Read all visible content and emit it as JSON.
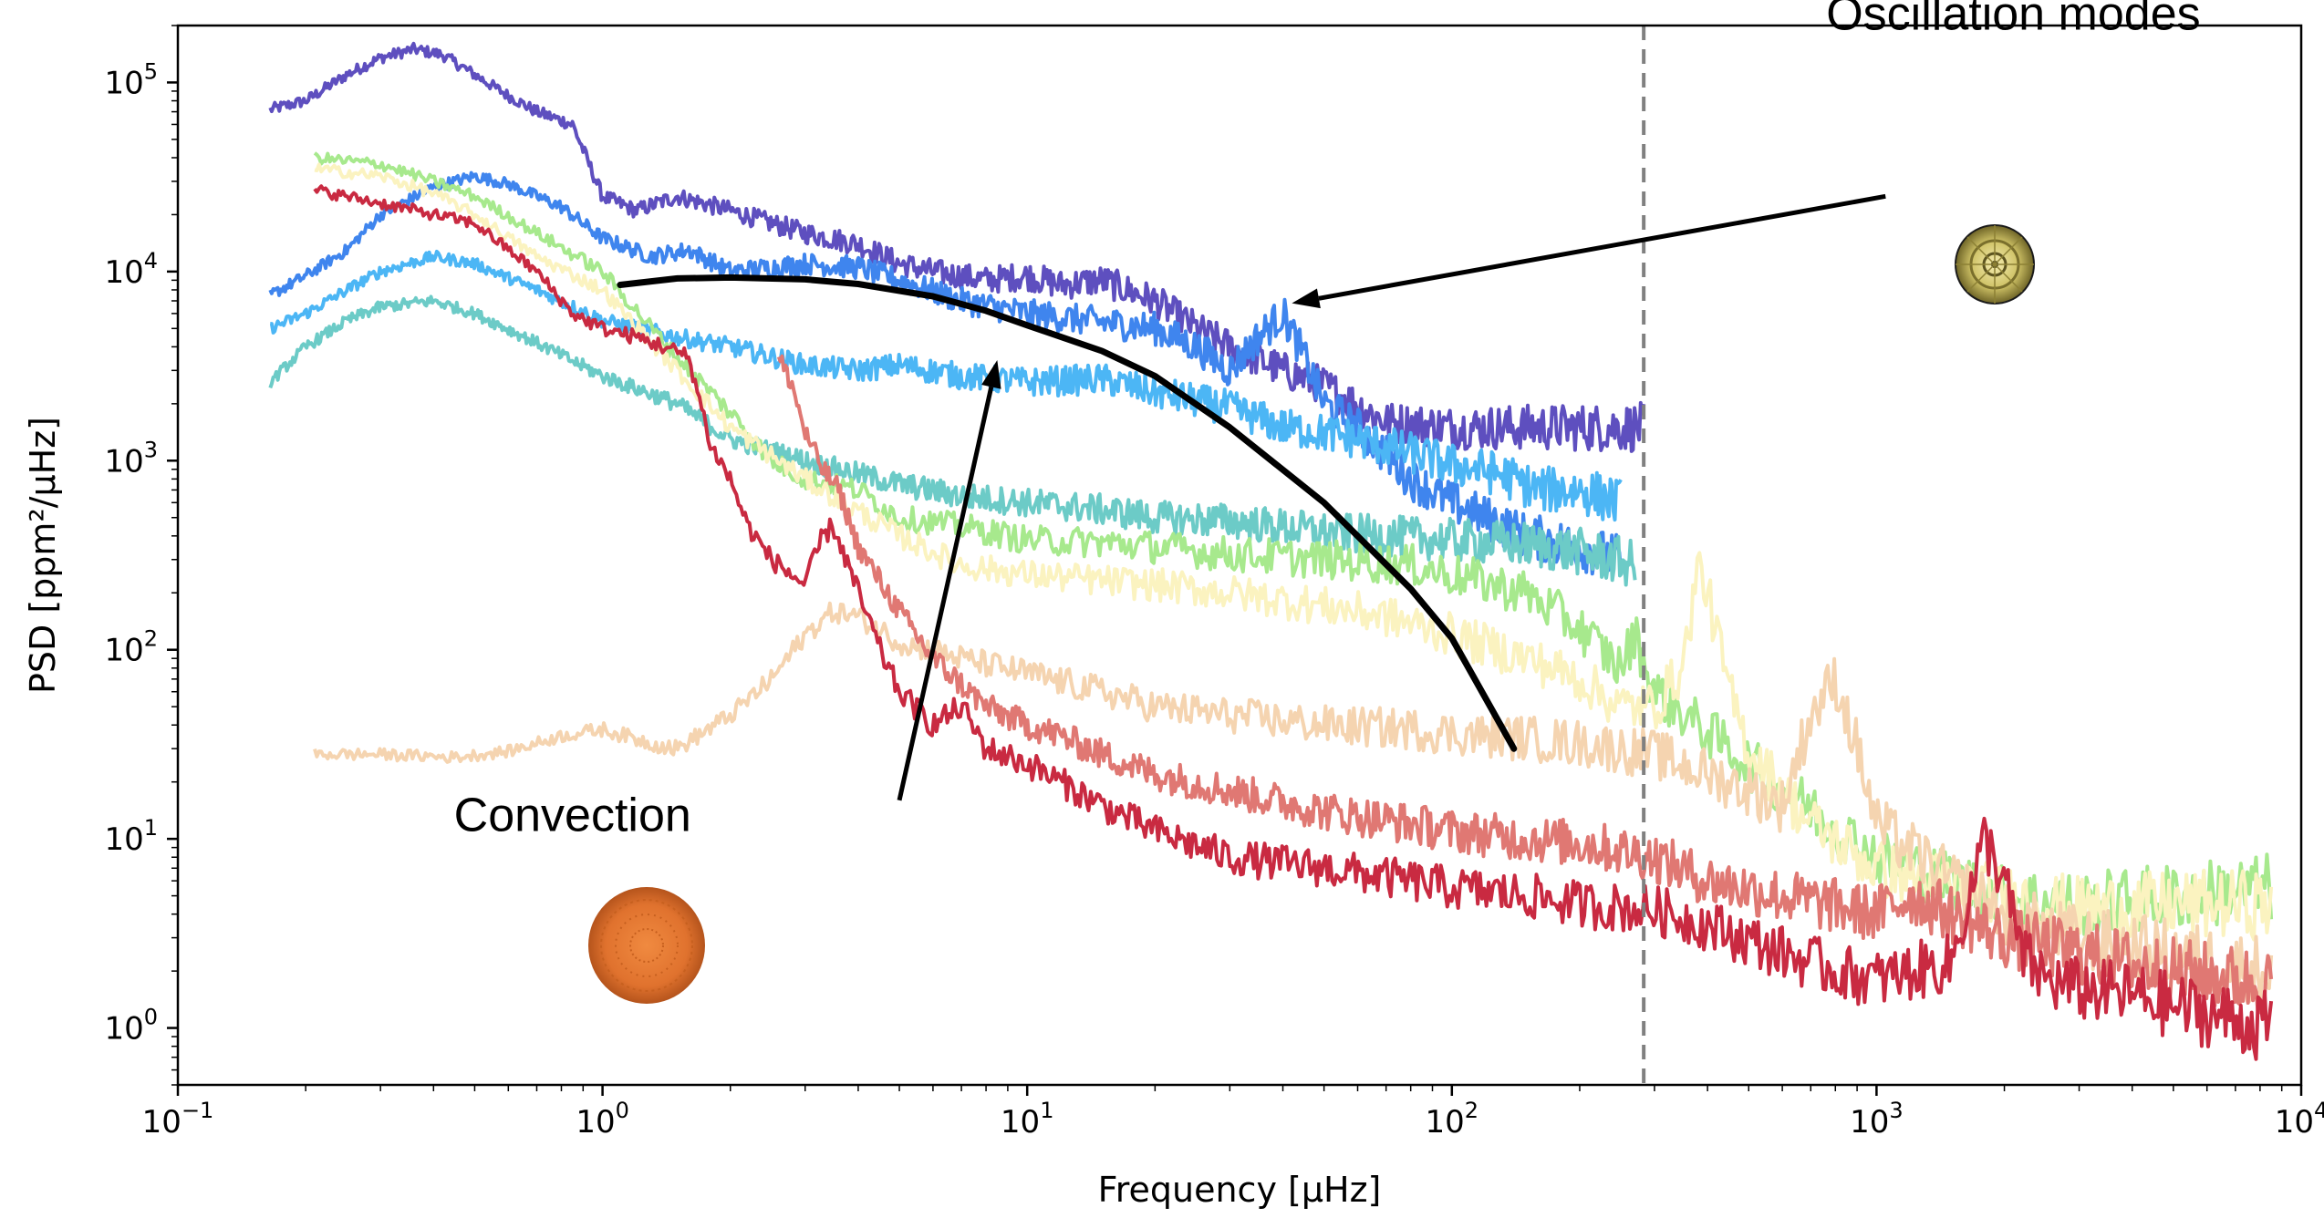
{
  "chart_data": {
    "type": "line",
    "xlabel": "Frequency [μHz]",
    "ylabel": "PSD [ppm²/μHz]",
    "xscale": "log",
    "yscale": "log",
    "xlim": [
      0.1,
      10000
    ],
    "ylim": [
      0.5,
      200000
    ],
    "grid": false,
    "xticks": [
      {
        "value": 0.1,
        "base": "10",
        "exp": "−1"
      },
      {
        "value": 1,
        "base": "10",
        "exp": "0"
      },
      {
        "value": 10,
        "base": "10",
        "exp": "1"
      },
      {
        "value": 100,
        "base": "10",
        "exp": "2"
      },
      {
        "value": 1000,
        "base": "10",
        "exp": "3"
      },
      {
        "value": 10000,
        "base": "10",
        "exp": "4"
      }
    ],
    "yticks": [
      {
        "value": 1,
        "base": "10",
        "exp": "0"
      },
      {
        "value": 10,
        "base": "10",
        "exp": "1"
      },
      {
        "value": 100,
        "base": "10",
        "exp": "2"
      },
      {
        "value": 1000,
        "base": "10",
        "exp": "3"
      },
      {
        "value": 10000,
        "base": "10",
        "exp": "4"
      },
      {
        "value": 100000,
        "base": "10",
        "exp": "5"
      }
    ],
    "vline": {
      "x": 283,
      "style": "dashed",
      "color": "#808080"
    },
    "series": [
      {
        "color": "#5e4fbf",
        "x": [
          0.165,
          0.2,
          0.25,
          0.3,
          0.36,
          0.42,
          0.5,
          0.6,
          0.7,
          0.85,
          1.0,
          1.2,
          1.5,
          2.0,
          2.5,
          3.0,
          4.0,
          5.0,
          6.0,
          8.0,
          10,
          12,
          15,
          20,
          25,
          30,
          40,
          50,
          70,
          100,
          150,
          200,
          283
        ],
        "y": [
          72000,
          80000,
          110000,
          135000,
          150000,
          140000,
          110000,
          85000,
          70000,
          60000,
          25000,
          21000,
          25000,
          21000,
          18000,
          16000,
          14000,
          11000,
          10000,
          9000,
          9500,
          8500,
          9000,
          7000,
          5000,
          4000,
          3000,
          2500,
          1600,
          1500,
          1500,
          1500,
          1500
        ]
      },
      {
        "color": "#3f85ee",
        "x": [
          0.165,
          0.2,
          0.25,
          0.3,
          0.4,
          0.5,
          0.6,
          0.8,
          1.0,
          1.3,
          1.6,
          2.0,
          3.0,
          4.0,
          5.0,
          7.0,
          10,
          14,
          20,
          25,
          30,
          35,
          40,
          45,
          50,
          60,
          80,
          100,
          150,
          200,
          250
        ],
        "y": [
          7500,
          9500,
          13000,
          20000,
          28000,
          32000,
          29000,
          22000,
          15000,
          12000,
          13000,
          10000,
          11000,
          10500,
          9000,
          7000,
          6000,
          5500,
          5000,
          4000,
          3000,
          4500,
          6000,
          3500,
          2000,
          1500,
          800,
          600,
          400,
          350,
          300
        ]
      },
      {
        "color": "#4cb6f5",
        "x": [
          0.165,
          0.2,
          0.25,
          0.3,
          0.4,
          0.5,
          0.7,
          1.0,
          1.5,
          2.0,
          3.0,
          4.0,
          5.0,
          7.0,
          10,
          15,
          20,
          30,
          40,
          50,
          60,
          80,
          100,
          130,
          160,
          200,
          250
        ],
        "y": [
          5000,
          6000,
          8000,
          10000,
          12000,
          11000,
          8000,
          5500,
          4500,
          4000,
          3200,
          3000,
          3200,
          2800,
          2600,
          2700,
          2300,
          1900,
          1500,
          1400,
          1300,
          1100,
          950,
          850,
          700,
          700,
          600
        ]
      },
      {
        "color": "#6ccbc7",
        "x": [
          0.165,
          0.2,
          0.25,
          0.3,
          0.4,
          0.5,
          0.7,
          1.0,
          1.5,
          2.0,
          3.0,
          5.0,
          7.0,
          10,
          15,
          20,
          30,
          50,
          70,
          100,
          150,
          200,
          240,
          270
        ],
        "y": [
          2600,
          4000,
          5500,
          6500,
          7000,
          6000,
          4200,
          2800,
          2000,
          1300,
          1000,
          750,
          650,
          600,
          550,
          500,
          480,
          420,
          400,
          380,
          360,
          330,
          300,
          280
        ]
      },
      {
        "color": "#a7e98d",
        "x": [
          0.21,
          0.3,
          0.4,
          0.5,
          0.7,
          1.0,
          1.5,
          2.0,
          2.5,
          3.0,
          4.0,
          5.0,
          7.0,
          10,
          15,
          20,
          30,
          50,
          80,
          100,
          150,
          200,
          250,
          270,
          300,
          500,
          1000,
          2000,
          3000,
          5000,
          8500
        ],
        "y": [
          40000,
          37000,
          30000,
          25000,
          16000,
          10000,
          3500,
          1800,
          1000,
          800,
          700,
          500,
          450,
          380,
          370,
          350,
          320,
          300,
          280,
          250,
          200,
          130,
          80,
          120,
          60,
          25,
          8,
          5,
          4.5,
          5,
          5.5
        ]
      },
      {
        "color": "#fbf3c0",
        "x": [
          0.21,
          0.3,
          0.4,
          0.5,
          0.7,
          1.0,
          1.5,
          2.0,
          3.0,
          5.0,
          7.0,
          10,
          20,
          30,
          50,
          70,
          100,
          150,
          200,
          250,
          300,
          350,
          380,
          400,
          450,
          500,
          700,
          1000,
          2000,
          3000,
          5000,
          8500
        ],
        "y": [
          35000,
          32000,
          26000,
          20000,
          12000,
          8000,
          3000,
          1500,
          800,
          400,
          280,
          250,
          220,
          200,
          170,
          150,
          120,
          90,
          70,
          50,
          50,
          80,
          280,
          200,
          60,
          30,
          12,
          7,
          5,
          4.3,
          4.5,
          4.5
        ]
      },
      {
        "color": "#f5d4b0",
        "x": [
          0.21,
          0.3,
          0.45,
          0.6,
          0.8,
          1.0,
          1.3,
          1.5,
          2.0,
          2.5,
          3.0,
          3.5,
          4.0,
          5.0,
          7.0,
          10,
          15,
          20,
          30,
          50,
          80,
          100,
          150,
          200,
          300,
          400,
          500,
          600,
          700,
          800,
          900,
          1000,
          1500,
          2000,
          3000,
          5000,
          8500
        ],
        "y": [
          28,
          28,
          27,
          29,
          35,
          38,
          32,
          30,
          45,
          70,
          120,
          160,
          150,
          110,
          90,
          75,
          60,
          50,
          45,
          40,
          38,
          36,
          34,
          32,
          28,
          22,
          18,
          15,
          45,
          70,
          30,
          12,
          6,
          4,
          3,
          2.5,
          2
        ]
      },
      {
        "color": "#e07873",
        "x": [
          2.6,
          2.8,
          3.0,
          3.3,
          3.6,
          4.0,
          5.0,
          6.0,
          8.0,
          10,
          12,
          15,
          20,
          30,
          50,
          80,
          100,
          150,
          200,
          300,
          400,
          600,
          1000,
          1200,
          1500,
          2000,
          3000,
          5000,
          8500
        ],
        "y": [
          3500,
          2500,
          1400,
          900,
          700,
          350,
          160,
          90,
          50,
          40,
          35,
          28,
          22,
          18,
          14,
          12,
          11,
          10,
          9.5,
          8,
          6,
          5,
          4,
          5,
          4,
          3,
          2.5,
          2,
          1.7
        ]
      },
      {
        "color": "#c92a41",
        "x": [
          0.21,
          0.3,
          0.5,
          0.7,
          0.85,
          1.0,
          1.2,
          1.4,
          1.6,
          1.8,
          2.0,
          2.2,
          2.5,
          3.0,
          3.3,
          3.5,
          4.0,
          4.5,
          5.0,
          6.0,
          7.0,
          8.0,
          10,
          12,
          15,
          20,
          30,
          50,
          80,
          100,
          150,
          200,
          300,
          400,
          600,
          800,
          1000,
          1500,
          1800,
          2000,
          2200,
          2500,
          3000,
          4000,
          5000,
          6000,
          7000,
          8500
        ],
        "y": [
          27000,
          23000,
          18000,
          10000,
          6000,
          5000,
          4500,
          4000,
          3500,
          1200,
          800,
          450,
          300,
          220,
          400,
          450,
          200,
          100,
          60,
          40,
          50,
          30,
          25,
          20,
          15,
          11,
          8,
          7,
          6,
          5.5,
          5,
          4.5,
          4.2,
          3.5,
          2.5,
          2,
          1.8,
          2.2,
          10,
          6,
          2.4,
          1.8,
          1.6,
          1.5,
          1.3,
          1.2,
          1.1,
          1
        ]
      }
    ],
    "model_curve": {
      "color": "#000000",
      "x": [
        1.1,
        1.5,
        2,
        3,
        4,
        6,
        8,
        10,
        15,
        20,
        30,
        50,
        80,
        100,
        140
      ],
      "y": [
        8500,
        9200,
        9300,
        9100,
        8600,
        7400,
        6200,
        5200,
        3800,
        2800,
        1500,
        600,
        210,
        115,
        30
      ]
    },
    "annotations": [
      {
        "text": "Oscillation modes",
        "x": 2100,
        "y": 190000,
        "arrow_to": [
          42,
          6800
        ],
        "arrow_from": [
          1050,
          25000
        ]
      },
      {
        "text": "Convection",
        "x": 0.85,
        "y": 11,
        "arrow_to": [
          8.5,
          3400
        ],
        "arrow_from": [
          5.0,
          16
        ]
      }
    ],
    "icons": [
      {
        "name": "oscillating-star-icon",
        "color": "#d9cf72"
      },
      {
        "name": "convecting-star-icon",
        "color": "#e0722e"
      }
    ]
  }
}
